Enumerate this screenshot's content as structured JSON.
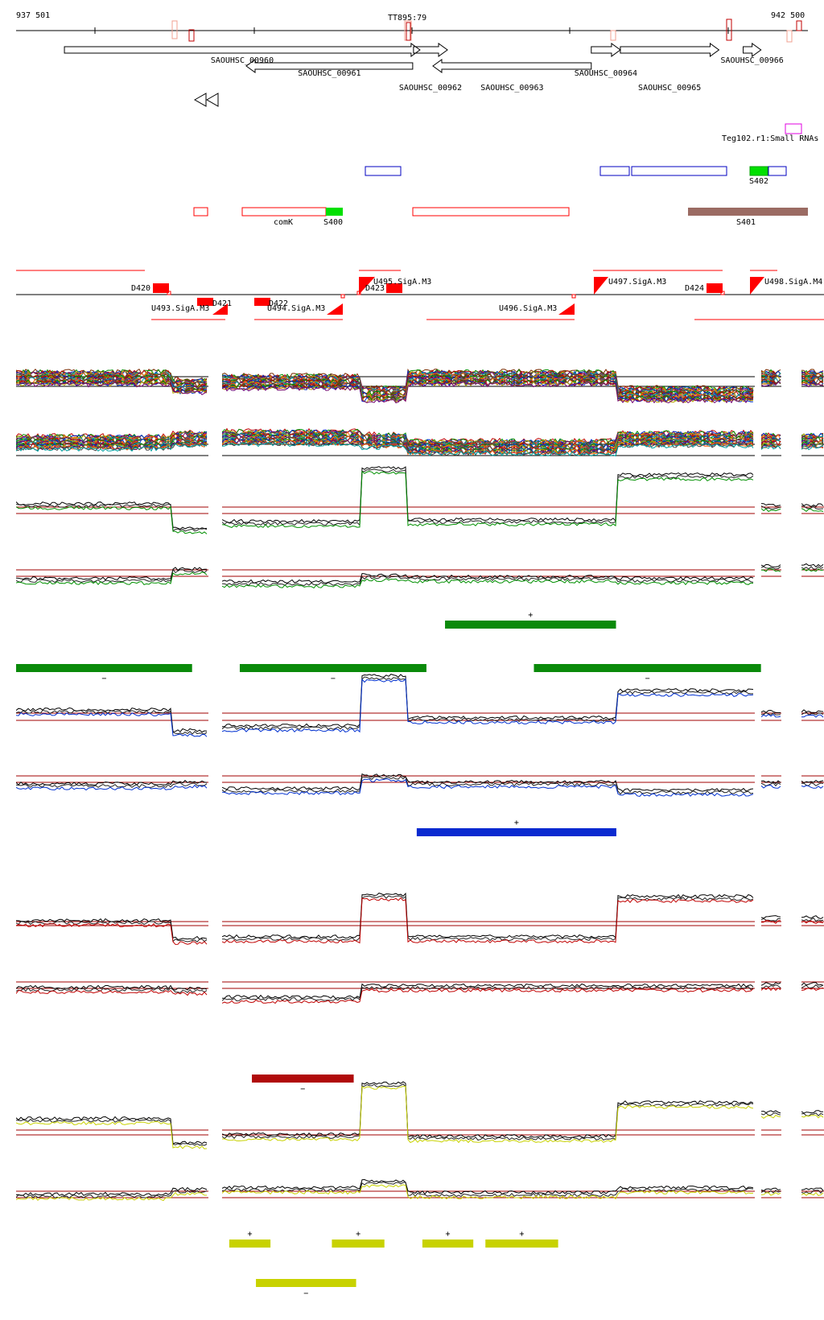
{
  "genome_browser": {
    "coord_start": "937 501",
    "coord_end": "942 500",
    "terminator_label": "TT895:79",
    "genes": [
      {
        "name": "SAOUHSC_00960",
        "start": 937800,
        "end": 940000,
        "strand": "+",
        "label_row": 0
      },
      {
        "name": "SAOUHSC_00961",
        "start": 938925,
        "end": 939955,
        "strand": "-",
        "label_row": 1
      },
      {
        "name": "SAOUHSC_00962",
        "start": 939960,
        "end": 940170,
        "strand": "+",
        "label_row": 2
      },
      {
        "name": "SAOUHSC_00963",
        "start": 940080,
        "end": 941060,
        "strand": "-",
        "label_row": 2
      },
      {
        "name": "SAOUHSC_00964",
        "start": 941060,
        "end": 941240,
        "strand": "+",
        "label_row": 1
      },
      {
        "name": "SAOUHSC_00965",
        "start": 941240,
        "end": 941850,
        "strand": "+",
        "label_row": 2
      },
      {
        "name": "SAOUHSC_00966",
        "start": 942000,
        "end": 942110,
        "strand": "+",
        "label_row": 0
      }
    ],
    "small_rna_label": "Teg102.r1:Small RNAs [",
    "regulatory_labels": {
      "comK": "comK",
      "S400": "S400",
      "S401": "S401",
      "S402": "S402"
    },
    "segment_labels": {
      "D420": "D420",
      "D421": "D421",
      "D422": "D422",
      "D423": "D423",
      "D424": "D424",
      "U493": "U493.SigA.M3",
      "U494": "U494.SigA.M3",
      "U495": "U495.SigA.M3",
      "U496": "U496.SigA.M3",
      "U497": "U497.SigA.M3",
      "U498": "U498.SigA.M4"
    },
    "colors": {
      "heatmap_green": "#0a8a0a",
      "heatmap_blue": "#0a2ad0",
      "heatmap_red": "#b00a0a",
      "heatmap_yellow": "#c8d200",
      "segment_red": "#ff0000",
      "s401_brown": "#9b6b63",
      "s_green": "#00e000",
      "small_rna_magenta": "#e000e0"
    },
    "condition_bars": [
      {
        "track": "green",
        "strand_label": "+",
        "segments": [
          [
            940155,
            941213
          ]
        ]
      },
      {
        "track": "green",
        "strand_label": "−",
        "segments": [
          [
            937501,
            938590
          ],
          [
            938885,
            940040
          ],
          [
            940705,
            942110
          ]
        ]
      },
      {
        "track": "blue",
        "strand_label": "+",
        "segments": [
          [
            939980,
            941215
          ]
        ]
      },
      {
        "track": "red",
        "strand_label": "−",
        "segments": [
          [
            938960,
            939590
          ]
        ]
      },
      {
        "track": "yellow",
        "strand_label": "+",
        "segments": [
          [
            938820,
            939075
          ],
          [
            939455,
            939780
          ],
          [
            940015,
            940330
          ],
          [
            940405,
            940855
          ]
        ]
      },
      {
        "track": "yellow",
        "strand_label": "−",
        "segments": [
          [
            938985,
            939605
          ]
        ]
      }
    ]
  }
}
